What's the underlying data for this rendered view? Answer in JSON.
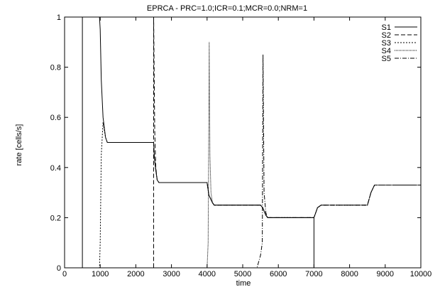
{
  "chart_data": {
    "type": "line",
    "title": "EPRCA - PRC=1.0;ICR=0.1;MCR=0.0;NRM=1",
    "xlabel": "time",
    "ylabel": "rate [cells/s]",
    "xlim": [
      0,
      10000
    ],
    "ylim": [
      0,
      1
    ],
    "xticks": [
      "0",
      "1000",
      "2000",
      "3000",
      "4000",
      "5000",
      "6000",
      "7000",
      "8000",
      "9000",
      "10000"
    ],
    "yticks": [
      "0",
      "0.2",
      "0.4",
      "0.6",
      "0.8",
      "1"
    ],
    "grid": false,
    "legend_position": "top-right",
    "series": [
      {
        "name": "S1",
        "dash": "solid",
        "x": [
          500,
          500,
          980,
          1000,
          1030,
          1080,
          1150,
          1200,
          2500,
          2520,
          2560,
          2600,
          2650,
          4000,
          4050,
          4150,
          4200,
          5500,
          5560,
          5650,
          5700,
          7000,
          7000,
          10000
        ],
        "y": [
          0,
          1,
          1,
          0.95,
          0.75,
          0.6,
          0.52,
          0.5,
          0.5,
          0.44,
          0.39,
          0.35,
          0.34,
          0.34,
          0.29,
          0.26,
          0.25,
          0.25,
          0.24,
          0.21,
          0.2,
          0.2,
          0,
          0
        ]
      },
      {
        "name": "S2",
        "dash": "6,3",
        "x": [
          0,
          2480,
          2500,
          2500,
          2530,
          2560,
          2600,
          2650,
          4000,
          4050,
          4150,
          4200,
          5500,
          5560,
          5650,
          5700,
          7000,
          7100,
          7200,
          8500,
          8600,
          8700,
          10000
        ],
        "y": [
          0,
          0,
          0,
          1,
          0.55,
          0.4,
          0.35,
          0.34,
          0.34,
          0.29,
          0.26,
          0.25,
          0.25,
          0.24,
          0.21,
          0.2,
          0.2,
          0.24,
          0.25,
          0.25,
          0.3,
          0.33,
          0.33
        ]
      },
      {
        "name": "S3",
        "dash": "2,2",
        "x": [
          0,
          980,
          1000,
          1030,
          1080,
          1150,
          1200,
          2500,
          2520,
          2560,
          2600,
          2650,
          4000,
          4050,
          4150,
          4200,
          5500,
          5560,
          5650,
          5700,
          7000,
          7100,
          7200,
          8500,
          8600,
          8700,
          10000
        ],
        "y": [
          0,
          0,
          0.1,
          0.45,
          0.58,
          0.52,
          0.5,
          0.5,
          0.44,
          0.39,
          0.35,
          0.34,
          0.34,
          0.29,
          0.26,
          0.25,
          0.25,
          0.24,
          0.21,
          0.2,
          0.2,
          0.24,
          0.25,
          0.25,
          0.3,
          0.33,
          0.33
        ]
      },
      {
        "name": "S4",
        "dash": "1,1",
        "x": [
          0,
          4000,
          4030,
          4060,
          4080,
          4110,
          4150,
          4200,
          5500,
          5560,
          5650,
          5700,
          7000,
          7100,
          7200,
          8500,
          8600,
          8700,
          10000
        ],
        "y": [
          0,
          0,
          0.1,
          0.9,
          0.45,
          0.3,
          0.26,
          0.25,
          0.25,
          0.24,
          0.21,
          0.2,
          0.2,
          0.24,
          0.25,
          0.25,
          0.3,
          0.33,
          0.33
        ]
      },
      {
        "name": "S5",
        "dash": "6,2,1,2",
        "x": [
          0,
          5400,
          5500,
          5550,
          5570,
          5600,
          5650,
          5700,
          7000,
          7100,
          7200,
          8500,
          8600,
          8700,
          10000
        ],
        "y": [
          0,
          0,
          0.05,
          0.1,
          0.85,
          0.3,
          0.22,
          0.2,
          0.2,
          0.24,
          0.25,
          0.25,
          0.3,
          0.33,
          0.33
        ]
      }
    ]
  }
}
